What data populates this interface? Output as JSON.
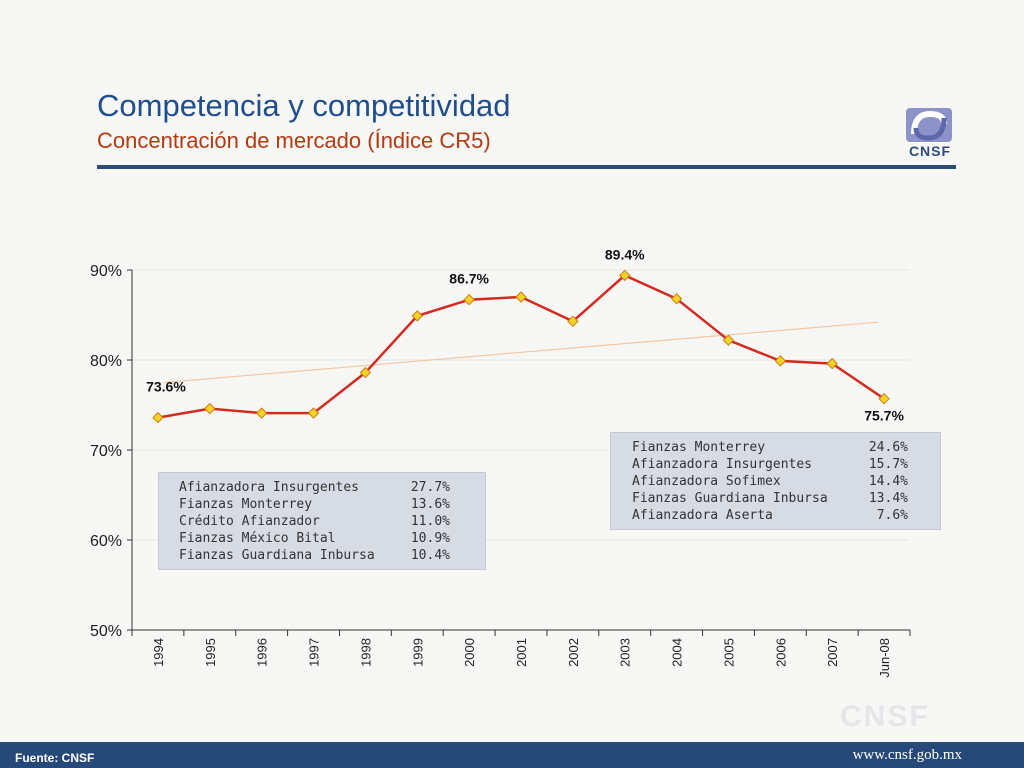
{
  "header": {
    "title": "Competencia y competitividad",
    "subtitle": "Concentración de mercado (Índice CR5)",
    "logo_text": "CNSF"
  },
  "watermark": "CNSF",
  "footer": {
    "source": "Fuente: CNSF",
    "url": "www.cnsf.gob.mx"
  },
  "colors": {
    "line": "#d42a20",
    "marker_fill": "#f6d327",
    "marker_stroke": "#d07a10",
    "trend": "#f2c9a0",
    "title": "#1f4e8c",
    "subtitle": "#b33a12",
    "footer": "#26497a"
  },
  "chart_data": {
    "type": "line",
    "categories": [
      "1994",
      "1995",
      "1996",
      "1997",
      "1998",
      "1999",
      "2000",
      "2001",
      "2002",
      "2003",
      "2004",
      "2005",
      "2006",
      "2007",
      "Jun-08"
    ],
    "series": [
      {
        "values": [
          73.6,
          74.6,
          74.1,
          74.1,
          78.6,
          84.9,
          86.7,
          87.0,
          84.3,
          89.4,
          86.8,
          82.2,
          79.9,
          79.6,
          75.7
        ]
      }
    ],
    "trendline": {
      "start": 77.5,
      "end": 84.2
    },
    "data_labels": [
      {
        "index": 0,
        "text": "73.6%"
      },
      {
        "index": 6,
        "text": "86.7%"
      },
      {
        "index": 9,
        "text": "89.4%"
      },
      {
        "index": 14,
        "text": "75.7%"
      }
    ],
    "ylim": [
      50,
      90
    ],
    "yticks": [
      "50%",
      "60%",
      "70%",
      "80%",
      "90%"
    ],
    "grid": true,
    "xlabel": "",
    "ylabel": ""
  },
  "annotations": {
    "box_1994": {
      "rows": [
        {
          "name": "Afianzadora Insurgentes",
          "value": "27.7%"
        },
        {
          "name": "Fianzas Monterrey",
          "value": "13.6%"
        },
        {
          "name": "Crédito Afianzador",
          "value": "11.0%"
        },
        {
          "name": "Fianzas México Bital",
          "value": "10.9%"
        },
        {
          "name": "Fianzas Guardiana Inbursa",
          "value": "10.4%"
        }
      ]
    },
    "box_2008": {
      "rows": [
        {
          "name": "Fianzas Monterrey",
          "value": "24.6%"
        },
        {
          "name": "Afianzadora Insurgentes",
          "value": "15.7%"
        },
        {
          "name": "Afianzadora Sofimex",
          "value": "14.4%"
        },
        {
          "name": "Fianzas Guardiana Inbursa",
          "value": "13.4%"
        },
        {
          "name": "Afianzadora Aserta",
          "value": "7.6%"
        }
      ]
    }
  }
}
